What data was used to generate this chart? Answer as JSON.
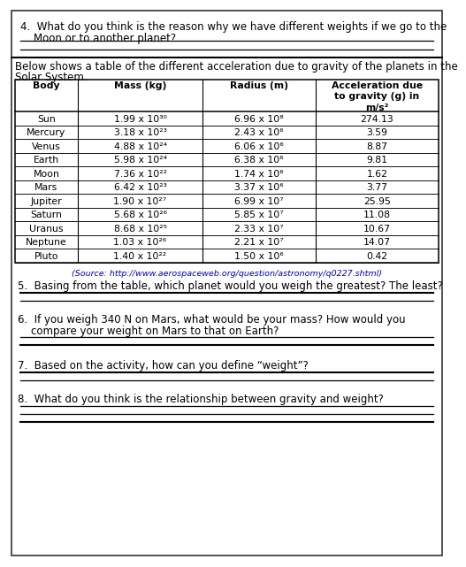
{
  "q4_text_1": "4.  What do you think is the reason why we have different weights if we go to the",
  "q4_text_2": "    Moon or to another planet?",
  "below_text_1": "Below shows a table of the different acceleration due to gravity of the planets in the",
  "below_text_2": "Solar System.",
  "table_headers": [
    "Body",
    "Mass (kg)",
    "Radius (m)",
    "Acceleration due\nto gravity (g) in\nm/s²"
  ],
  "table_data": [
    [
      "Sun",
      "1.99 x 10³⁰",
      "6.96 x 10⁸",
      "274.13"
    ],
    [
      "Mercury",
      "3.18 x 10²³",
      "2.43 x 10⁶",
      "3.59"
    ],
    [
      "Venus",
      "4.88 x 10²⁴",
      "6.06 x 10⁶",
      "8.87"
    ],
    [
      "Earth",
      "5.98 x 10²⁴",
      "6.38 x 10⁶",
      "9.81"
    ],
    [
      "Moon",
      "7.36 x 10²²",
      "1.74 x 10⁶",
      "1.62"
    ],
    [
      "Mars",
      "6.42 x 10²³",
      "3.37 x 10⁶",
      "3.77"
    ],
    [
      "Jupiter",
      "1.90 x 10²⁷",
      "6.99 x 10⁷",
      "25.95"
    ],
    [
      "Saturn",
      "5.68 x 10²⁶",
      "5.85 x 10⁷",
      "11.08"
    ],
    [
      "Uranus",
      "8.68 x 10²⁵",
      "2.33 x 10⁷",
      "10.67"
    ],
    [
      "Neptune",
      "1.03 x 10²⁶",
      "2.21 x 10⁷",
      "14.07"
    ],
    [
      "Pluto",
      "1.40 x 10²²",
      "1.50 x 10⁶",
      "0.42"
    ]
  ],
  "source_prefix": "(Source: ",
  "source_url": "http://www.aerospaceweb.org/question/astronomy/q0227.shtml",
  "source_suffix": ")",
  "q5_text": "5.  Basing from the table, which planet would you weigh the greatest? The least?",
  "q6_text_1": "6.  If you weigh 340 N on Mars, what would be your mass? How would you",
  "q6_text_2": "    compare your weight on Mars to that on Earth?",
  "q7_text": "7.  Based on the activity, how can you define “weight”?",
  "q8_text": "8.  What do you think is the relationship between gravity and weight?",
  "bg_color": "#ffffff",
  "border_color": "#333333",
  "text_color": "#000000",
  "line_color": "#000000",
  "table_border_color": "#000000",
  "url_color": "#0000cc"
}
